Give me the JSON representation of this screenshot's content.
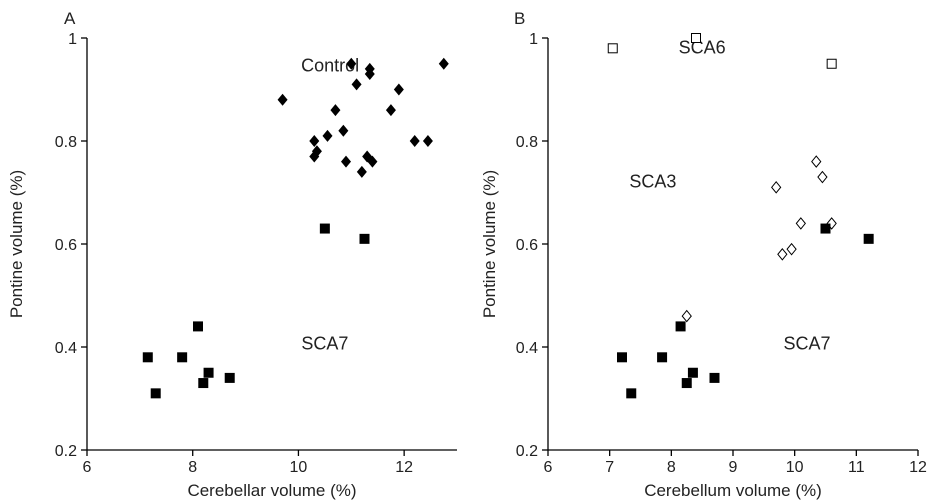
{
  "chart_data": [
    {
      "type": "scatter",
      "panel_label": "A",
      "xlabel": "Cerebellar volume (%)",
      "ylabel": "Pontine volume (%)",
      "xlim": [
        6,
        13
      ],
      "ylim": [
        0.2,
        1.0
      ],
      "xticks": [
        6,
        8,
        10,
        12
      ],
      "yticks": [
        0.2,
        0.4,
        0.6,
        0.8,
        1.0
      ],
      "xtick_labels": [
        "6",
        "8",
        "10",
        "12"
      ],
      "ytick_labels": [
        "0.2",
        "0.4",
        "0.6",
        "0.8",
        "1"
      ],
      "group_labels": [
        {
          "text": "Control",
          "x": 10.6,
          "y": 0.935
        },
        {
          "text": "SCA7",
          "x": 10.5,
          "y": 0.395
        }
      ],
      "series": [
        {
          "marker": "filled-diamond",
          "points": [
            [
              9.7,
              0.88
            ],
            [
              10.3,
              0.8
            ],
            [
              10.3,
              0.77
            ],
            [
              10.35,
              0.78
            ],
            [
              10.55,
              0.81
            ],
            [
              10.7,
              0.86
            ],
            [
              10.85,
              0.82
            ],
            [
              10.9,
              0.76
            ],
            [
              11.0,
              0.95
            ],
            [
              11.1,
              0.91
            ],
            [
              11.2,
              0.74
            ],
            [
              11.3,
              0.77
            ],
            [
              11.35,
              0.94
            ],
            [
              11.35,
              0.93
            ],
            [
              11.4,
              0.76
            ],
            [
              11.75,
              0.86
            ],
            [
              11.9,
              0.9
            ],
            [
              12.2,
              0.8
            ],
            [
              12.45,
              0.8
            ],
            [
              12.75,
              0.95
            ]
          ]
        },
        {
          "marker": "filled-square",
          "points": [
            [
              7.15,
              0.38
            ],
            [
              7.3,
              0.31
            ],
            [
              7.8,
              0.38
            ],
            [
              8.1,
              0.44
            ],
            [
              8.2,
              0.33
            ],
            [
              8.3,
              0.35
            ],
            [
              8.7,
              0.34
            ],
            [
              10.5,
              0.63
            ],
            [
              11.25,
              0.61
            ]
          ]
        }
      ]
    },
    {
      "type": "scatter",
      "panel_label": "B",
      "xlabel": "Cerebellum volume (%)",
      "ylabel": "Pontine volume (%)",
      "xlim": [
        6,
        12
      ],
      "ylim": [
        0.2,
        1.0
      ],
      "xticks": [
        6,
        7,
        8,
        9,
        10,
        11,
        12
      ],
      "yticks": [
        0.2,
        0.4,
        0.6,
        0.8,
        1.0
      ],
      "xtick_labels": [
        "6",
        "7",
        "8",
        "9",
        "10",
        "11",
        "12"
      ],
      "ytick_labels": [
        "0.2",
        "0.4",
        "0.6",
        "0.8",
        "1"
      ],
      "group_labels": [
        {
          "text": "SCA6",
          "x": 8.5,
          "y": 0.97
        },
        {
          "text": "SCA3",
          "x": 7.7,
          "y": 0.71
        },
        {
          "text": "SCA7",
          "x": 10.2,
          "y": 0.395
        }
      ],
      "series": [
        {
          "marker": "open-square",
          "points": [
            [
              7.05,
              0.98
            ],
            [
              8.4,
              1.0
            ],
            [
              10.6,
              0.95
            ]
          ]
        },
        {
          "marker": "open-diamond",
          "points": [
            [
              8.25,
              0.46
            ],
            [
              9.7,
              0.71
            ],
            [
              9.8,
              0.58
            ],
            [
              9.95,
              0.59
            ],
            [
              10.1,
              0.64
            ],
            [
              10.35,
              0.76
            ],
            [
              10.45,
              0.73
            ],
            [
              10.6,
              0.64
            ]
          ]
        },
        {
          "marker": "filled-square",
          "points": [
            [
              7.2,
              0.38
            ],
            [
              7.35,
              0.31
            ],
            [
              7.85,
              0.38
            ],
            [
              8.15,
              0.44
            ],
            [
              8.25,
              0.33
            ],
            [
              8.35,
              0.35
            ],
            [
              8.7,
              0.34
            ],
            [
              10.5,
              0.63
            ],
            [
              11.2,
              0.61
            ]
          ]
        }
      ]
    }
  ]
}
